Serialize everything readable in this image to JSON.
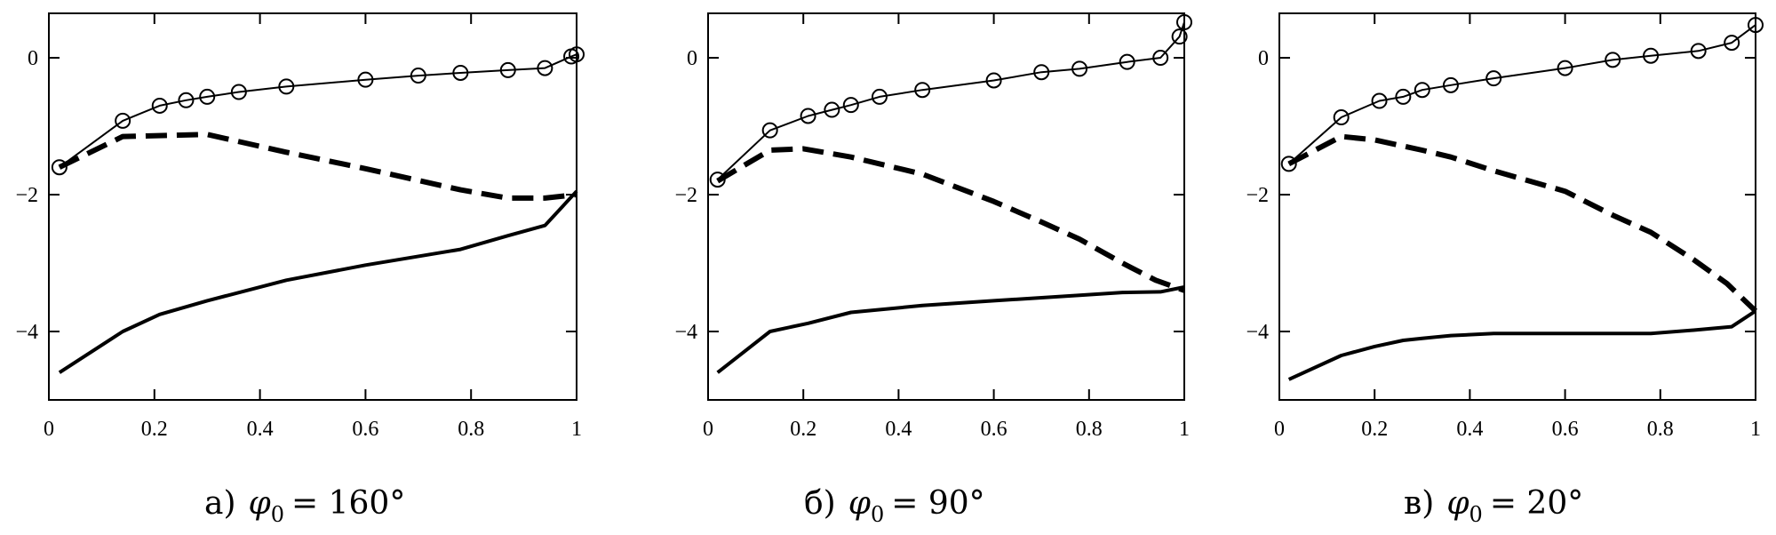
{
  "chart_data": [
    {
      "type": "line",
      "caption": {
        "prefix": "а)",
        "variable": "φ",
        "subscript": "0",
        "value": "= 160°"
      },
      "xlim": [
        0,
        1
      ],
      "ylim": [
        -5,
        0.65
      ],
      "x_ticks": [
        0,
        0.2,
        0.4,
        0.6,
        0.8,
        1
      ],
      "x_tick_labels": [
        "0",
        "0.2",
        "0.4",
        "0.6",
        "0.8",
        "1"
      ],
      "y_ticks": [
        0,
        -2,
        -4
      ],
      "y_tick_labels": [
        "0",
        "−2",
        "−4"
      ],
      "series": [
        {
          "style": "thin-circles",
          "x": [
            0.02,
            0.14,
            0.21,
            0.26,
            0.3,
            0.36,
            0.45,
            0.6,
            0.7,
            0.78,
            0.87,
            0.94,
            0.99,
            1.0
          ],
          "y": [
            -1.6,
            -0.92,
            -0.7,
            -0.62,
            -0.57,
            -0.5,
            -0.42,
            -0.32,
            -0.26,
            -0.22,
            -0.18,
            -0.15,
            0.02,
            0.05
          ]
        },
        {
          "style": "thick-dashed",
          "x": [
            0.02,
            0.14,
            0.3,
            0.45,
            0.6,
            0.78,
            0.87,
            0.94,
            1.0
          ],
          "y": [
            -1.6,
            -1.15,
            -1.12,
            -1.38,
            -1.62,
            -1.93,
            -2.05,
            -2.05,
            -2.0
          ]
        },
        {
          "style": "thick-solid",
          "x": [
            0.02,
            0.14,
            0.21,
            0.3,
            0.45,
            0.6,
            0.78,
            0.87,
            0.94,
            1.0
          ],
          "y": [
            -4.6,
            -4.0,
            -3.75,
            -3.55,
            -3.25,
            -3.03,
            -2.8,
            -2.6,
            -2.45,
            -1.95
          ]
        }
      ]
    },
    {
      "type": "line",
      "caption": {
        "prefix": "б)",
        "variable": "φ",
        "subscript": "0",
        "value": "= 90°"
      },
      "xlim": [
        0,
        1
      ],
      "ylim": [
        -5,
        0.65
      ],
      "x_ticks": [
        0,
        0.2,
        0.4,
        0.6,
        0.8,
        1
      ],
      "x_tick_labels": [
        "0",
        "0.2",
        "0.4",
        "0.6",
        "0.8",
        "1"
      ],
      "y_ticks": [
        0,
        -2,
        -4
      ],
      "y_tick_labels": [
        "0",
        "−2",
        "−4"
      ],
      "series": [
        {
          "style": "thin-circles",
          "x": [
            0.02,
            0.13,
            0.21,
            0.26,
            0.3,
            0.36,
            0.45,
            0.6,
            0.7,
            0.78,
            0.88,
            0.95,
            0.99,
            1.0
          ],
          "y": [
            -1.78,
            -1.06,
            -0.85,
            -0.76,
            -0.69,
            -0.57,
            -0.47,
            -0.33,
            -0.21,
            -0.16,
            -0.06,
            0.0,
            0.31,
            0.52
          ]
        },
        {
          "style": "thick-dashed",
          "x": [
            0.02,
            0.13,
            0.2,
            0.3,
            0.45,
            0.6,
            0.7,
            0.78,
            0.87,
            0.94,
            1.0
          ],
          "y": [
            -1.8,
            -1.35,
            -1.33,
            -1.45,
            -1.7,
            -2.1,
            -2.4,
            -2.65,
            -3.0,
            -3.25,
            -3.4
          ]
        },
        {
          "style": "thick-solid",
          "x": [
            0.02,
            0.13,
            0.21,
            0.3,
            0.45,
            0.6,
            0.78,
            0.87,
            0.95,
            1.0
          ],
          "y": [
            -4.6,
            -4.0,
            -3.88,
            -3.72,
            -3.62,
            -3.55,
            -3.47,
            -3.43,
            -3.42,
            -3.35
          ]
        }
      ]
    },
    {
      "type": "line",
      "caption": {
        "prefix": "в)",
        "variable": "φ",
        "subscript": "0",
        "value": "= 20°"
      },
      "xlim": [
        0,
        1
      ],
      "ylim": [
        -5,
        0.65
      ],
      "x_ticks": [
        0,
        0.2,
        0.4,
        0.6,
        0.8,
        1
      ],
      "x_tick_labels": [
        "0",
        "0.2",
        "0.4",
        "0.6",
        "0.8",
        "1"
      ],
      "y_ticks": [
        0,
        -2,
        -4
      ],
      "y_tick_labels": [
        "0",
        "−2",
        "−4"
      ],
      "series": [
        {
          "style": "thin-circles",
          "x": [
            0.02,
            0.13,
            0.21,
            0.26,
            0.3,
            0.36,
            0.45,
            0.6,
            0.7,
            0.78,
            0.88,
            0.95,
            1.0
          ],
          "y": [
            -1.55,
            -0.87,
            -0.63,
            -0.57,
            -0.47,
            -0.4,
            -0.3,
            -0.15,
            -0.03,
            0.03,
            0.1,
            0.22,
            0.48
          ]
        },
        {
          "style": "thick-dashed",
          "x": [
            0.02,
            0.13,
            0.2,
            0.3,
            0.36,
            0.45,
            0.6,
            0.7,
            0.78,
            0.87,
            0.94,
            1.0
          ],
          "y": [
            -1.55,
            -1.15,
            -1.2,
            -1.35,
            -1.45,
            -1.65,
            -1.95,
            -2.3,
            -2.55,
            -2.95,
            -3.3,
            -3.7
          ]
        },
        {
          "style": "thick-solid",
          "x": [
            0.02,
            0.13,
            0.2,
            0.26,
            0.3,
            0.36,
            0.45,
            0.6,
            0.7,
            0.78,
            0.87,
            0.95,
            1.0
          ],
          "y": [
            -4.7,
            -4.35,
            -4.22,
            -4.13,
            -4.1,
            -4.06,
            -4.03,
            -4.03,
            -4.03,
            -4.03,
            -3.98,
            -3.93,
            -3.7
          ]
        }
      ]
    }
  ]
}
